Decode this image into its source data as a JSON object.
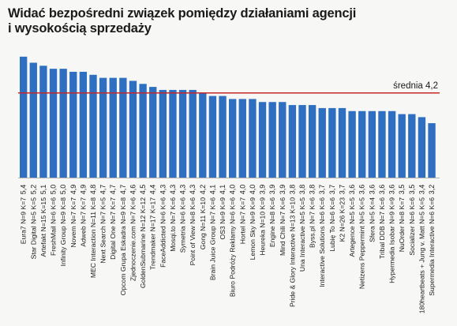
{
  "chart_data": {
    "type": "bar",
    "title_lines": [
      "Widać bezpośredni związek pomiędzy działaniami agencji",
      "i wysokością sprzedaży"
    ],
    "reference_line": {
      "label": "średnia 4,2",
      "value": 4.2,
      "color": "#c62828"
    },
    "bar_color": "#2f6fc2",
    "categories": [
      "Eura7 N=9 K=7",
      "Star Digital N=5 K=5",
      "Artefakt N=15 K=15",
      "FreshMail N=6 K=6",
      "Infinity Group N=9 K=8",
      "Novem N=7 K=7",
      "Adweb N=7 K=7",
      "MEC Interaction N=11 K=8",
      "Next Search N=7 K=5",
      "Digital One N=7 K=7",
      "Opcom Grupa Eskadra N=9 K=8",
      "Zjednoczenie.com N=7 K=6",
      "GoldenSubmarine N=12 K=12",
      "Trendmaker N=17 K=17",
      "FaceAddicted N=6 K=6",
      "Mosqi.to N=7 K=6",
      "Symetria N=6 K=6",
      "Point of View N=8 K=6",
      "Gong N=11 K=10",
      "Brain Juice Group N=7 K=6",
      "OS3 N=9 K=9",
      "Biuro Podróży Reklamy N=6 K=6",
      "Hortel N=7 K=7",
      "Lemon Sky N=9 K=9",
      "Heureka N=10 K=9",
      "Engine N=8 K=6",
      "Mind Chili N=7 K=6",
      "Pride & Glory Interactive N=13 K=10",
      "Una Interactive N=5 K=5",
      "Byss.pl N=7 K=6",
      "Interactive Solutions N=6 K=6",
      "Lubię To N=6 K=6",
      "K2 N=26 K=23",
      "Artegence N=5 K=5",
      "Netizens Peppermint N=5 K=5",
      "Sfera N=5 K=4",
      "Tribal DDB N=7 K=6",
      "Hypermedia Isobar N=9 K=9",
      "NuOrder N=8 K=7",
      "Socializer N=6 K=6",
      "180heartbeats + Jung v. Matt N=5 K=5",
      "Supermedia Interactive N=6 K=6"
    ],
    "value_labels": [
      "5,4",
      "5,2",
      "5,1",
      "5,0",
      "5,0",
      "4,9",
      "4,9",
      "4,8",
      "4,7",
      "4,7",
      "4,7",
      "4,6",
      "4,5",
      "4,4",
      "4,3",
      "4,3",
      "4,3",
      "4,3",
      "4,2",
      "4,1",
      "4,1",
      "4,0",
      "4,0",
      "4,0",
      "3,9",
      "3,9",
      "3,9",
      "3,8",
      "3,8",
      "3,8",
      "3,7",
      "3,7",
      "3,7",
      "3,6",
      "3,6",
      "3,6",
      "3,6",
      "3,6",
      "3,5",
      "3,5",
      "3,4",
      "3,2"
    ],
    "values": [
      5.4,
      5.2,
      5.1,
      5.0,
      5.0,
      4.9,
      4.9,
      4.8,
      4.7,
      4.7,
      4.7,
      4.6,
      4.5,
      4.4,
      4.3,
      4.3,
      4.3,
      4.3,
      4.2,
      4.1,
      4.1,
      4.0,
      4.0,
      4.0,
      3.9,
      3.9,
      3.9,
      3.8,
      3.8,
      3.8,
      3.7,
      3.7,
      3.7,
      3.6,
      3.6,
      3.6,
      3.6,
      3.6,
      3.5,
      3.5,
      3.4,
      3.2
    ],
    "axis": {
      "baseline_value": 1.4
    },
    "xlabel": "",
    "ylabel": ""
  }
}
